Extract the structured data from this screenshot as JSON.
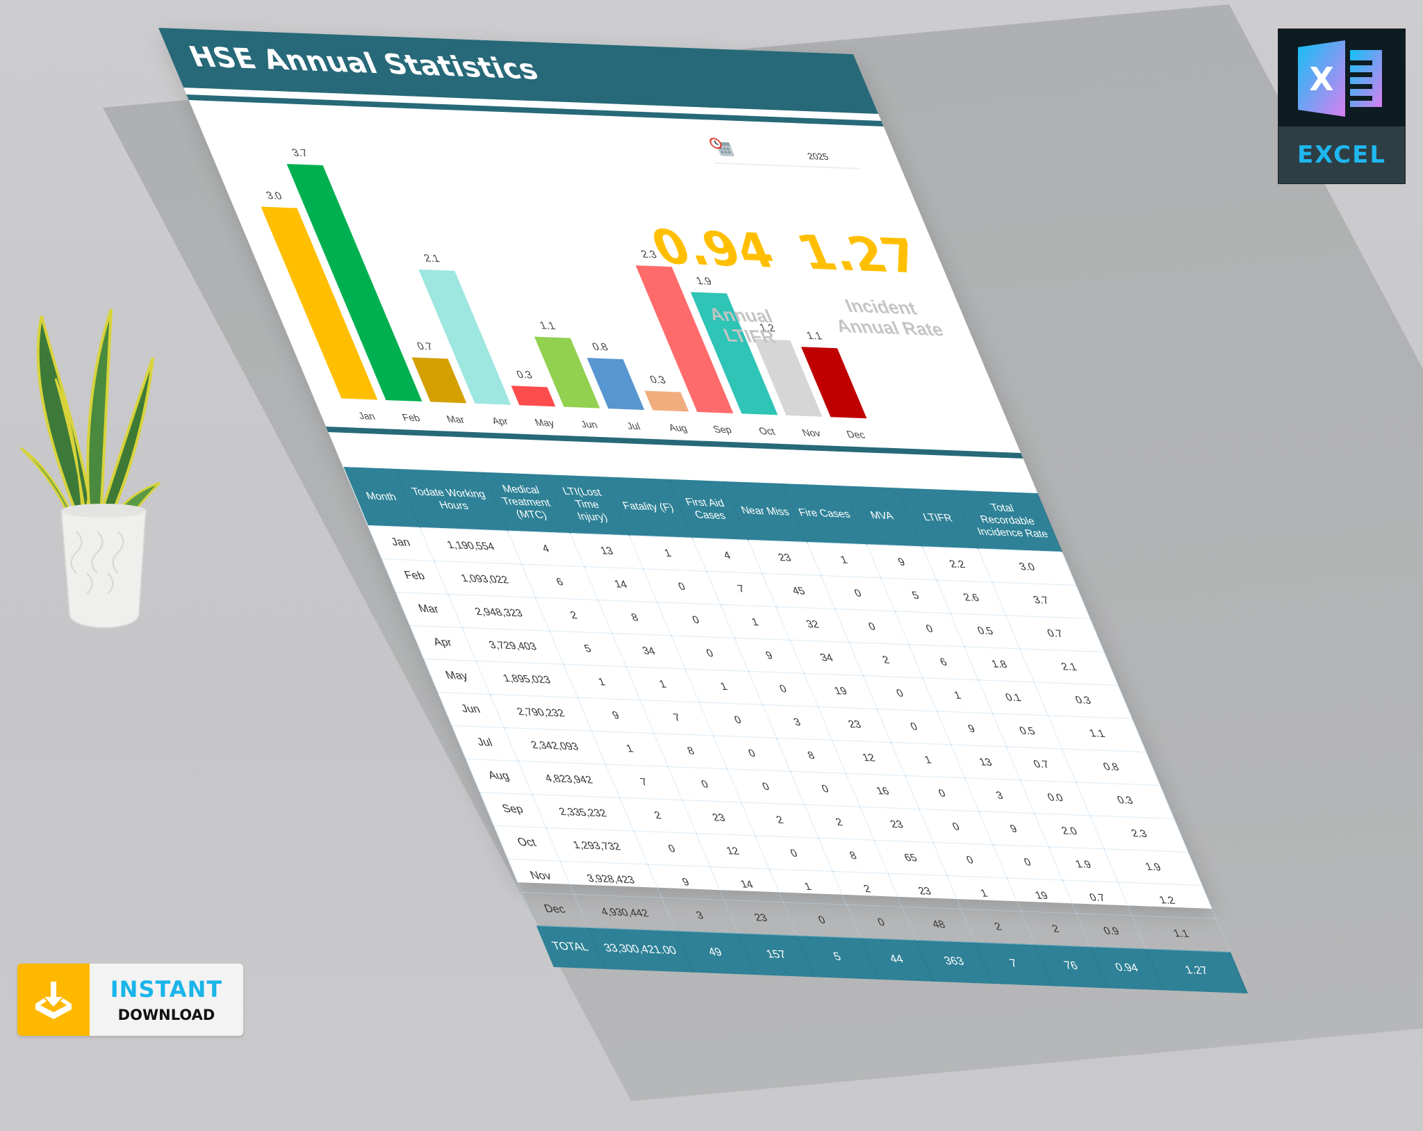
{
  "dashboard": {
    "title": "HSE Annual Statistics",
    "year_picker": {
      "icon": "calendar-clock-icon",
      "value": "2025"
    },
    "kpis": [
      {
        "value": "0.94",
        "label_line1": "Annual",
        "label_line2": "LTIFR"
      },
      {
        "value": "1.27",
        "label_line1": "Incident",
        "label_line2": "Annual Rate"
      }
    ],
    "table": {
      "headers": [
        "Month",
        "Todate Working Hours",
        "Medical Treatment (MTC)",
        "LTI(Lost Time Injury)",
        "Fatality (F)",
        "First Aid Cases",
        "Near Miss",
        "Fire Cases",
        "MVA",
        "LTIFR",
        "Total Recordable Incidence Rate"
      ],
      "rows": [
        [
          "Jan",
          "1,190,554",
          "4",
          "13",
          "1",
          "4",
          "23",
          "1",
          "9",
          "2.2",
          "3.0"
        ],
        [
          "Feb",
          "1,093,022",
          "6",
          "14",
          "0",
          "7",
          "45",
          "0",
          "5",
          "2.6",
          "3.7"
        ],
        [
          "Mar",
          "2,948,323",
          "2",
          "8",
          "0",
          "1",
          "32",
          "0",
          "0",
          "0.5",
          "0.7"
        ],
        [
          "Apr",
          "3,729,403",
          "5",
          "34",
          "0",
          "9",
          "34",
          "2",
          "6",
          "1.8",
          "2.1"
        ],
        [
          "May",
          "1,895,023",
          "1",
          "1",
          "1",
          "0",
          "19",
          "0",
          "1",
          "0.1",
          "0.3"
        ],
        [
          "Jun",
          "2,790,232",
          "9",
          "7",
          "0",
          "3",
          "23",
          "0",
          "9",
          "0.5",
          "1.1"
        ],
        [
          "Jul",
          "2,342,093",
          "1",
          "8",
          "0",
          "8",
          "12",
          "1",
          "13",
          "0.7",
          "0.8"
        ],
        [
          "Aug",
          "4,823,942",
          "7",
          "0",
          "0",
          "0",
          "16",
          "0",
          "3",
          "0.0",
          "0.3"
        ],
        [
          "Sep",
          "2,335,232",
          "2",
          "23",
          "2",
          "2",
          "23",
          "0",
          "9",
          "2.0",
          "2.3"
        ],
        [
          "Oct",
          "1,293,732",
          "0",
          "12",
          "0",
          "8",
          "65",
          "0",
          "0",
          "1.9",
          "1.9"
        ],
        [
          "Nov",
          "3,928,423",
          "9",
          "14",
          "1",
          "2",
          "23",
          "1",
          "19",
          "0.7",
          "1.2"
        ],
        [
          "Dec",
          "4,930,442",
          "3",
          "23",
          "0",
          "0",
          "48",
          "2",
          "2",
          "0.9",
          "1.1"
        ]
      ],
      "total": [
        "TOTAL",
        "33,300,421.00",
        "49",
        "157",
        "5",
        "44",
        "363",
        "7",
        "76",
        "0.94",
        "1.27"
      ]
    }
  },
  "chart_data": {
    "type": "bar",
    "title": "",
    "categories": [
      "Jan",
      "Feb",
      "Mar",
      "Apr",
      "May",
      "Jun",
      "Jul",
      "Aug",
      "Sep",
      "Oct",
      "Nov",
      "Dec"
    ],
    "values": [
      3.0,
      3.7,
      0.7,
      2.1,
      0.3,
      1.1,
      0.8,
      0.3,
      2.3,
      1.9,
      1.2,
      1.1
    ],
    "value_labels": [
      "3.0",
      "3.7",
      "0.7",
      "2.1",
      "0.3",
      "1.1",
      "0.8",
      "0.3",
      "2.3",
      "1.9",
      "1.2",
      "1.1"
    ],
    "colors": [
      "#ffbf00",
      "#00b050",
      "#d4a000",
      "#9ee6e0",
      "#ff4c4c",
      "#92d050",
      "#5796d0",
      "#f2ad7e",
      "#ff6b6b",
      "#2ec4b6",
      "#d6d6d6",
      "#c00000"
    ],
    "xlabel": "",
    "ylabel": "",
    "ylim": [
      0,
      3.7
    ],
    "grid": false,
    "legend": "none",
    "data_labels": true
  },
  "badges": {
    "excel": {
      "icon": "excel-icon",
      "label": "EXCEL"
    },
    "download": {
      "icon": "download-tray-icon",
      "line1": "INSTANT",
      "line2": "DOWNLOAD"
    }
  },
  "colors": {
    "header_teal": "#276978",
    "table_header": "#2e8196",
    "kpi_yellow": "#ffbf00",
    "kpi_label_gray": "#c4c4c4"
  }
}
